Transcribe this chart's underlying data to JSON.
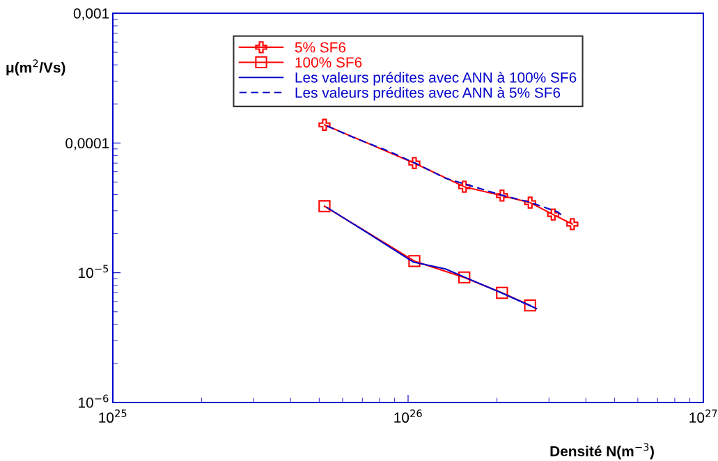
{
  "chart_data": {
    "type": "line",
    "xlabel": "Densité N(m$^{−3}$)",
    "ylabel": "μ(m$^{2}$/Vs)",
    "log": "xy",
    "grid": false,
    "legend": "top",
    "xlim": [
      1e+25,
      1e+27
    ],
    "xticks": [
      {
        "value": 1e+25,
        "label": "10$^{25}$"
      },
      {
        "value": 1e+26,
        "label": "10$^{26}$"
      },
      {
        "value": 1e+27,
        "label": "10$^{27}$"
      }
    ],
    "ylim": [
      1e-06,
      0.001
    ],
    "yticks": [
      {
        "value": 1e-06,
        "label": "10$^{−6}$"
      },
      {
        "value": 1e-05,
        "label": "10$^{−5}$"
      },
      {
        "value": 0.0001,
        "label": "0,0001"
      },
      {
        "value": 0.001,
        "label": "0,001"
      }
    ],
    "series": [
      {
        "name": "5% SF6",
        "color": "#ff0000",
        "marker": "cross",
        "line_style": "solid",
        "x": [
          5.21e+25,
          1.05e+26,
          1.55e+26,
          2.08e+26,
          2.59e+26,
          3.1e+26,
          3.6e+26
        ],
        "values": [
          0.000138,
          7e-05,
          4.6e-05,
          3.93e-05,
          3.47e-05,
          2.81e-05,
          2.37e-05
        ]
      },
      {
        "name": "100% SF6",
        "color": "#ff0000",
        "marker": "square",
        "line_style": "solid",
        "x": [
          5.21e+25,
          1.05e+26,
          1.55e+26,
          2.08e+26,
          2.59e+26
        ],
        "values": [
          3.26e-05,
          1.23e-05,
          9.2e-06,
          7e-06,
          5.6e-06
        ]
      },
      {
        "name": "Les valeurs prédites avec ANN à 100% SF6",
        "color": "#0000cc",
        "marker": "none",
        "line_style": "solid",
        "x": [
          5.32e+25,
          7.38e+25,
          1.04e+26,
          1.34e+26,
          1.56e+26,
          2.07e+26,
          2.72e+26
        ],
        "values": [
          3.18e-05,
          1.99e-05,
          1.21e-05,
          1.07e-05,
          9.2e-06,
          7e-06,
          5.3e-06
        ]
      },
      {
        "name": "Les valeurs prédites avec ANN à 5% SF6",
        "color": "#0000cc",
        "marker": "none",
        "line_style": "dashed",
        "x": [
          5.32e+25,
          6.62e+25,
          8.69e+25,
          1.08e+26,
          1.34e+26,
          1.67e+26,
          2.07e+26,
          2.57e+26,
          3.2e+26,
          3.34e+26
        ],
        "values": [
          0.000135,
          0.000109,
          8.55e-05,
          6.84e-05,
          5.34e-05,
          4.6e-05,
          3.97e-05,
          3.51e-05,
          2.95e-05,
          2.74e-05
        ]
      }
    ]
  }
}
